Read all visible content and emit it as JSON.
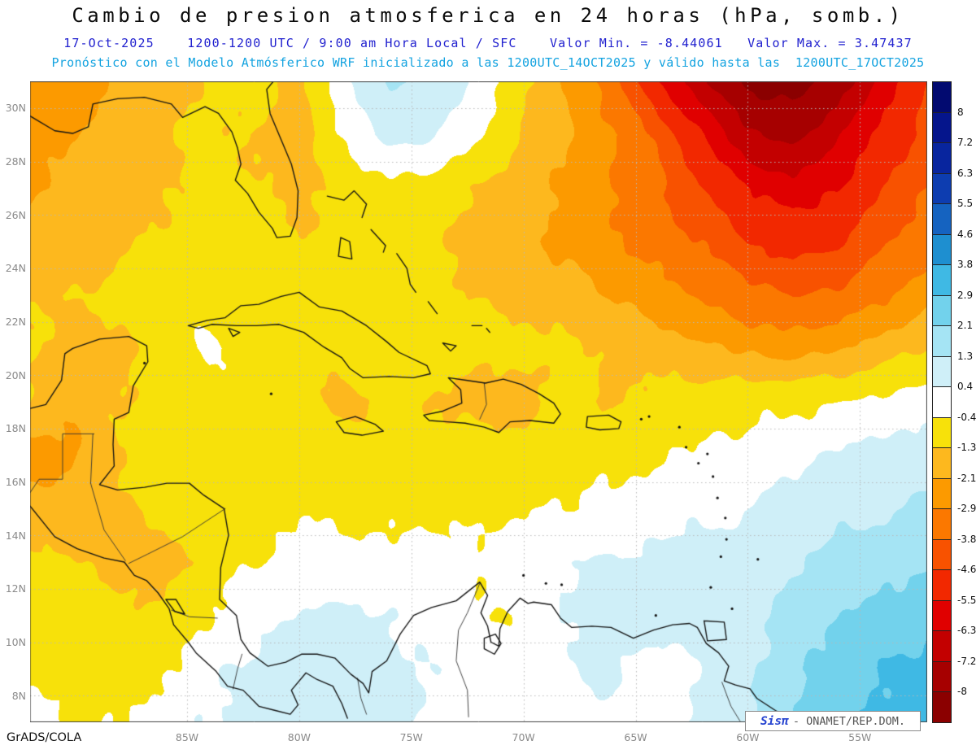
{
  "header": {
    "title": "Cambio de presion atmosferica en 24 horas (hPa, somb.)",
    "subtitle_line1": "17-Oct-2025    1200-1200 UTC / 9:00 am Hora Local / SFC    Valor Min. = -8.44061   Valor Max. = 3.47437",
    "subtitle_line2": "Pronóstico con el Modelo Atmósferico WRF inicializado a las 1200UTC_14OCT2025 y válido hasta las  1200UTC_17OCT2025",
    "title_color": "#0a0a0a",
    "subtitle1_color": "#2121cf",
    "subtitle2_color": "#14a3e0"
  },
  "footer": {
    "credit": "GrADS/COLA",
    "brand_prefix": "Sisπ",
    "brand_suffix": "- ONAMET/REP.DOM.",
    "brand_prefix_color": "#2543d0"
  },
  "chart_data": {
    "type": "heatmap",
    "title": "Cambio de presion atmosferica en 24 horas (hPa, somb.)",
    "units": "hPa",
    "valor_min": -8.44061,
    "valor_max": 3.47437,
    "valid_date": "17-Oct-2025",
    "period": "1200-1200 UTC",
    "local_time": "9:00 am Hora Local",
    "level": "SFC",
    "model": "WRF",
    "model_init": "1200UTC_14OCT2025",
    "model_valid": "1200UTC_17OCT2025",
    "lon_range": [
      -92,
      -52
    ],
    "lat_range": [
      7,
      31
    ],
    "x_axis": {
      "ticks": [
        {
          "label": "85W",
          "lon": -85
        },
        {
          "label": "80W",
          "lon": -80
        },
        {
          "label": "75W",
          "lon": -75
        },
        {
          "label": "70W",
          "lon": -70
        },
        {
          "label": "65W",
          "lon": -65
        },
        {
          "label": "60W",
          "lon": -60
        },
        {
          "label": "55W",
          "lon": -55
        }
      ]
    },
    "y_axis": {
      "ticks": [
        {
          "label": "30N",
          "lat": 30
        },
        {
          "label": "28N",
          "lat": 28
        },
        {
          "label": "26N",
          "lat": 26
        },
        {
          "label": "24N",
          "lat": 24
        },
        {
          "label": "22N",
          "lat": 22
        },
        {
          "label": "20N",
          "lat": 20
        },
        {
          "label": "18N",
          "lat": 18
        },
        {
          "label": "16N",
          "lat": 16
        },
        {
          "label": "14N",
          "lat": 14
        },
        {
          "label": "12N",
          "lat": 12
        },
        {
          "label": "10N",
          "lat": 10
        },
        {
          "label": "8N",
          "lat": 8
        }
      ]
    },
    "colorbar": {
      "labels_top_to_bottom": [
        "8",
        "7.2",
        "6.3",
        "5.5",
        "4.6",
        "3.8",
        "2.9",
        "2.1",
        "1.3",
        "0.4",
        "-0.4",
        "-1.3",
        "-2.1",
        "-2.9",
        "-3.8",
        "-4.6",
        "-5.5",
        "-6.3",
        "-7.2",
        "-8"
      ],
      "levels_ascending": [
        -8,
        -7.2,
        -6.3,
        -5.5,
        -4.6,
        -3.8,
        -2.9,
        -2.1,
        -1.3,
        -0.4,
        0.4,
        1.3,
        2.1,
        2.9,
        3.8,
        4.6,
        5.5,
        6.3,
        7.2,
        8
      ],
      "colors_ascending": [
        "#8b0000",
        "#a60000",
        "#c30000",
        "#e00000",
        "#f22800",
        "#f85200",
        "#fb7800",
        "#fc9a00",
        "#fdb81e",
        "#f7e10a",
        "#ffffff",
        "#cfeff8",
        "#a5e4f4",
        "#72d2ec",
        "#3fb9e4",
        "#1e8fd0",
        "#1563c0",
        "#0d3db0",
        "#08259e",
        "#05158c",
        "#020a70"
      ]
    },
    "grid": {
      "lons": [
        -92,
        -90,
        -88,
        -86,
        -84,
        -82,
        -80,
        -78,
        -76,
        -74,
        -72,
        -70,
        -68,
        -66,
        -64,
        -62,
        -60,
        -58,
        -56,
        -54,
        -52
      ],
      "lats": [
        31,
        29,
        27,
        25,
        23,
        21,
        19,
        17,
        15,
        13,
        11,
        9,
        7
      ],
      "values": [
        [
          -2.2,
          -2.8,
          -1.8,
          -1.5,
          -1.2,
          -1.0,
          -1.6,
          0.3,
          1.4,
          1.2,
          0.2,
          -1.0,
          -2.2,
          -3.5,
          -5.5,
          -7.0,
          -8.3,
          -8.4,
          -7.8,
          -6.0,
          -4.6
        ],
        [
          -2.5,
          -2.0,
          -1.7,
          -1.4,
          -1.1,
          -1.3,
          -1.8,
          -0.3,
          0.8,
          0.6,
          -0.4,
          -1.4,
          -2.0,
          -2.8,
          -4.0,
          -5.5,
          -7.0,
          -7.5,
          -6.5,
          -5.2,
          -4.3
        ],
        [
          -2.2,
          -1.9,
          -1.6,
          -1.3,
          -1.1,
          -1.2,
          -1.5,
          -1.0,
          -0.7,
          -0.9,
          -1.3,
          -1.8,
          -2.3,
          -2.9,
          -3.6,
          -4.5,
          -5.5,
          -6.0,
          -5.5,
          -4.6,
          -3.8
        ],
        [
          -1.9,
          -1.7,
          -1.4,
          -1.2,
          -1.0,
          -1.1,
          -1.2,
          -1.1,
          -1.0,
          -1.2,
          -1.5,
          -1.9,
          -2.3,
          -2.8,
          -3.3,
          -3.9,
          -4.6,
          -5.0,
          -4.8,
          -4.0,
          -3.3
        ],
        [
          -1.5,
          -1.3,
          -1.1,
          -0.9,
          -0.8,
          -0.9,
          -1.0,
          -1.0,
          -1.0,
          -1.1,
          -1.3,
          -1.5,
          -1.8,
          -2.2,
          -2.6,
          -3.0,
          -3.5,
          -3.8,
          -3.6,
          -3.0,
          -2.5
        ],
        [
          -1.1,
          -1.6,
          -1.5,
          -0.9,
          -0.2,
          -0.8,
          -1.0,
          -0.9,
          -1.2,
          -1.1,
          -1.0,
          -1.1,
          -1.2,
          -1.4,
          -1.7,
          -2.0,
          -2.3,
          -2.4,
          -2.2,
          -1.8,
          -1.3
        ],
        [
          -1.4,
          -1.9,
          -1.3,
          -0.9,
          -0.8,
          -0.8,
          -0.9,
          -1.6,
          -1.0,
          -1.3,
          -1.6,
          -1.7,
          -1.0,
          -1.5,
          -0.9,
          -0.8,
          -0.7,
          -0.6,
          -0.4,
          -0.2,
          0.0
        ],
        [
          -2.5,
          -2.2,
          -1.2,
          -0.9,
          -0.7,
          -0.7,
          -0.7,
          -0.8,
          -0.8,
          -0.9,
          -1.0,
          -0.9,
          -0.8,
          -0.7,
          -0.5,
          -0.3,
          -0.1,
          0.2,
          0.5,
          0.7,
          0.9
        ],
        [
          -1.8,
          -1.9,
          -1.4,
          -1.0,
          -0.7,
          -0.6,
          -0.5,
          -0.6,
          -0.6,
          -0.6,
          -0.6,
          -0.5,
          -0.4,
          -0.2,
          0.0,
          0.2,
          0.4,
          0.7,
          1.0,
          1.2,
          1.4
        ],
        [
          -1.0,
          -1.3,
          -1.6,
          -1.7,
          -0.9,
          -0.4,
          -0.2,
          -0.2,
          -0.1,
          0.0,
          -0.3,
          0.2,
          0.4,
          0.5,
          0.6,
          0.7,
          0.9,
          1.2,
          1.5,
          1.8,
          2.0
        ],
        [
          -0.8,
          -0.9,
          -1.2,
          -1.0,
          -0.4,
          0.2,
          0.5,
          0.6,
          0.4,
          0.1,
          -0.5,
          -0.3,
          0.5,
          0.8,
          0.9,
          0.8,
          1.0,
          1.5,
          2.0,
          2.4,
          2.7
        ],
        [
          -0.5,
          -0.6,
          -0.8,
          -0.5,
          0.2,
          0.6,
          0.8,
          0.9,
          0.7,
          0.3,
          0.0,
          -0.4,
          0.3,
          0.6,
          -0.2,
          0.5,
          1.2,
          1.9,
          2.5,
          2.9,
          3.2
        ],
        [
          -0.3,
          -0.4,
          -0.5,
          0.0,
          0.4,
          0.7,
          0.9,
          0.8,
          0.5,
          0.2,
          0.1,
          0.0,
          0.2,
          0.3,
          0.1,
          0.6,
          1.3,
          2.0,
          2.6,
          3.0,
          3.3
        ]
      ]
    }
  }
}
